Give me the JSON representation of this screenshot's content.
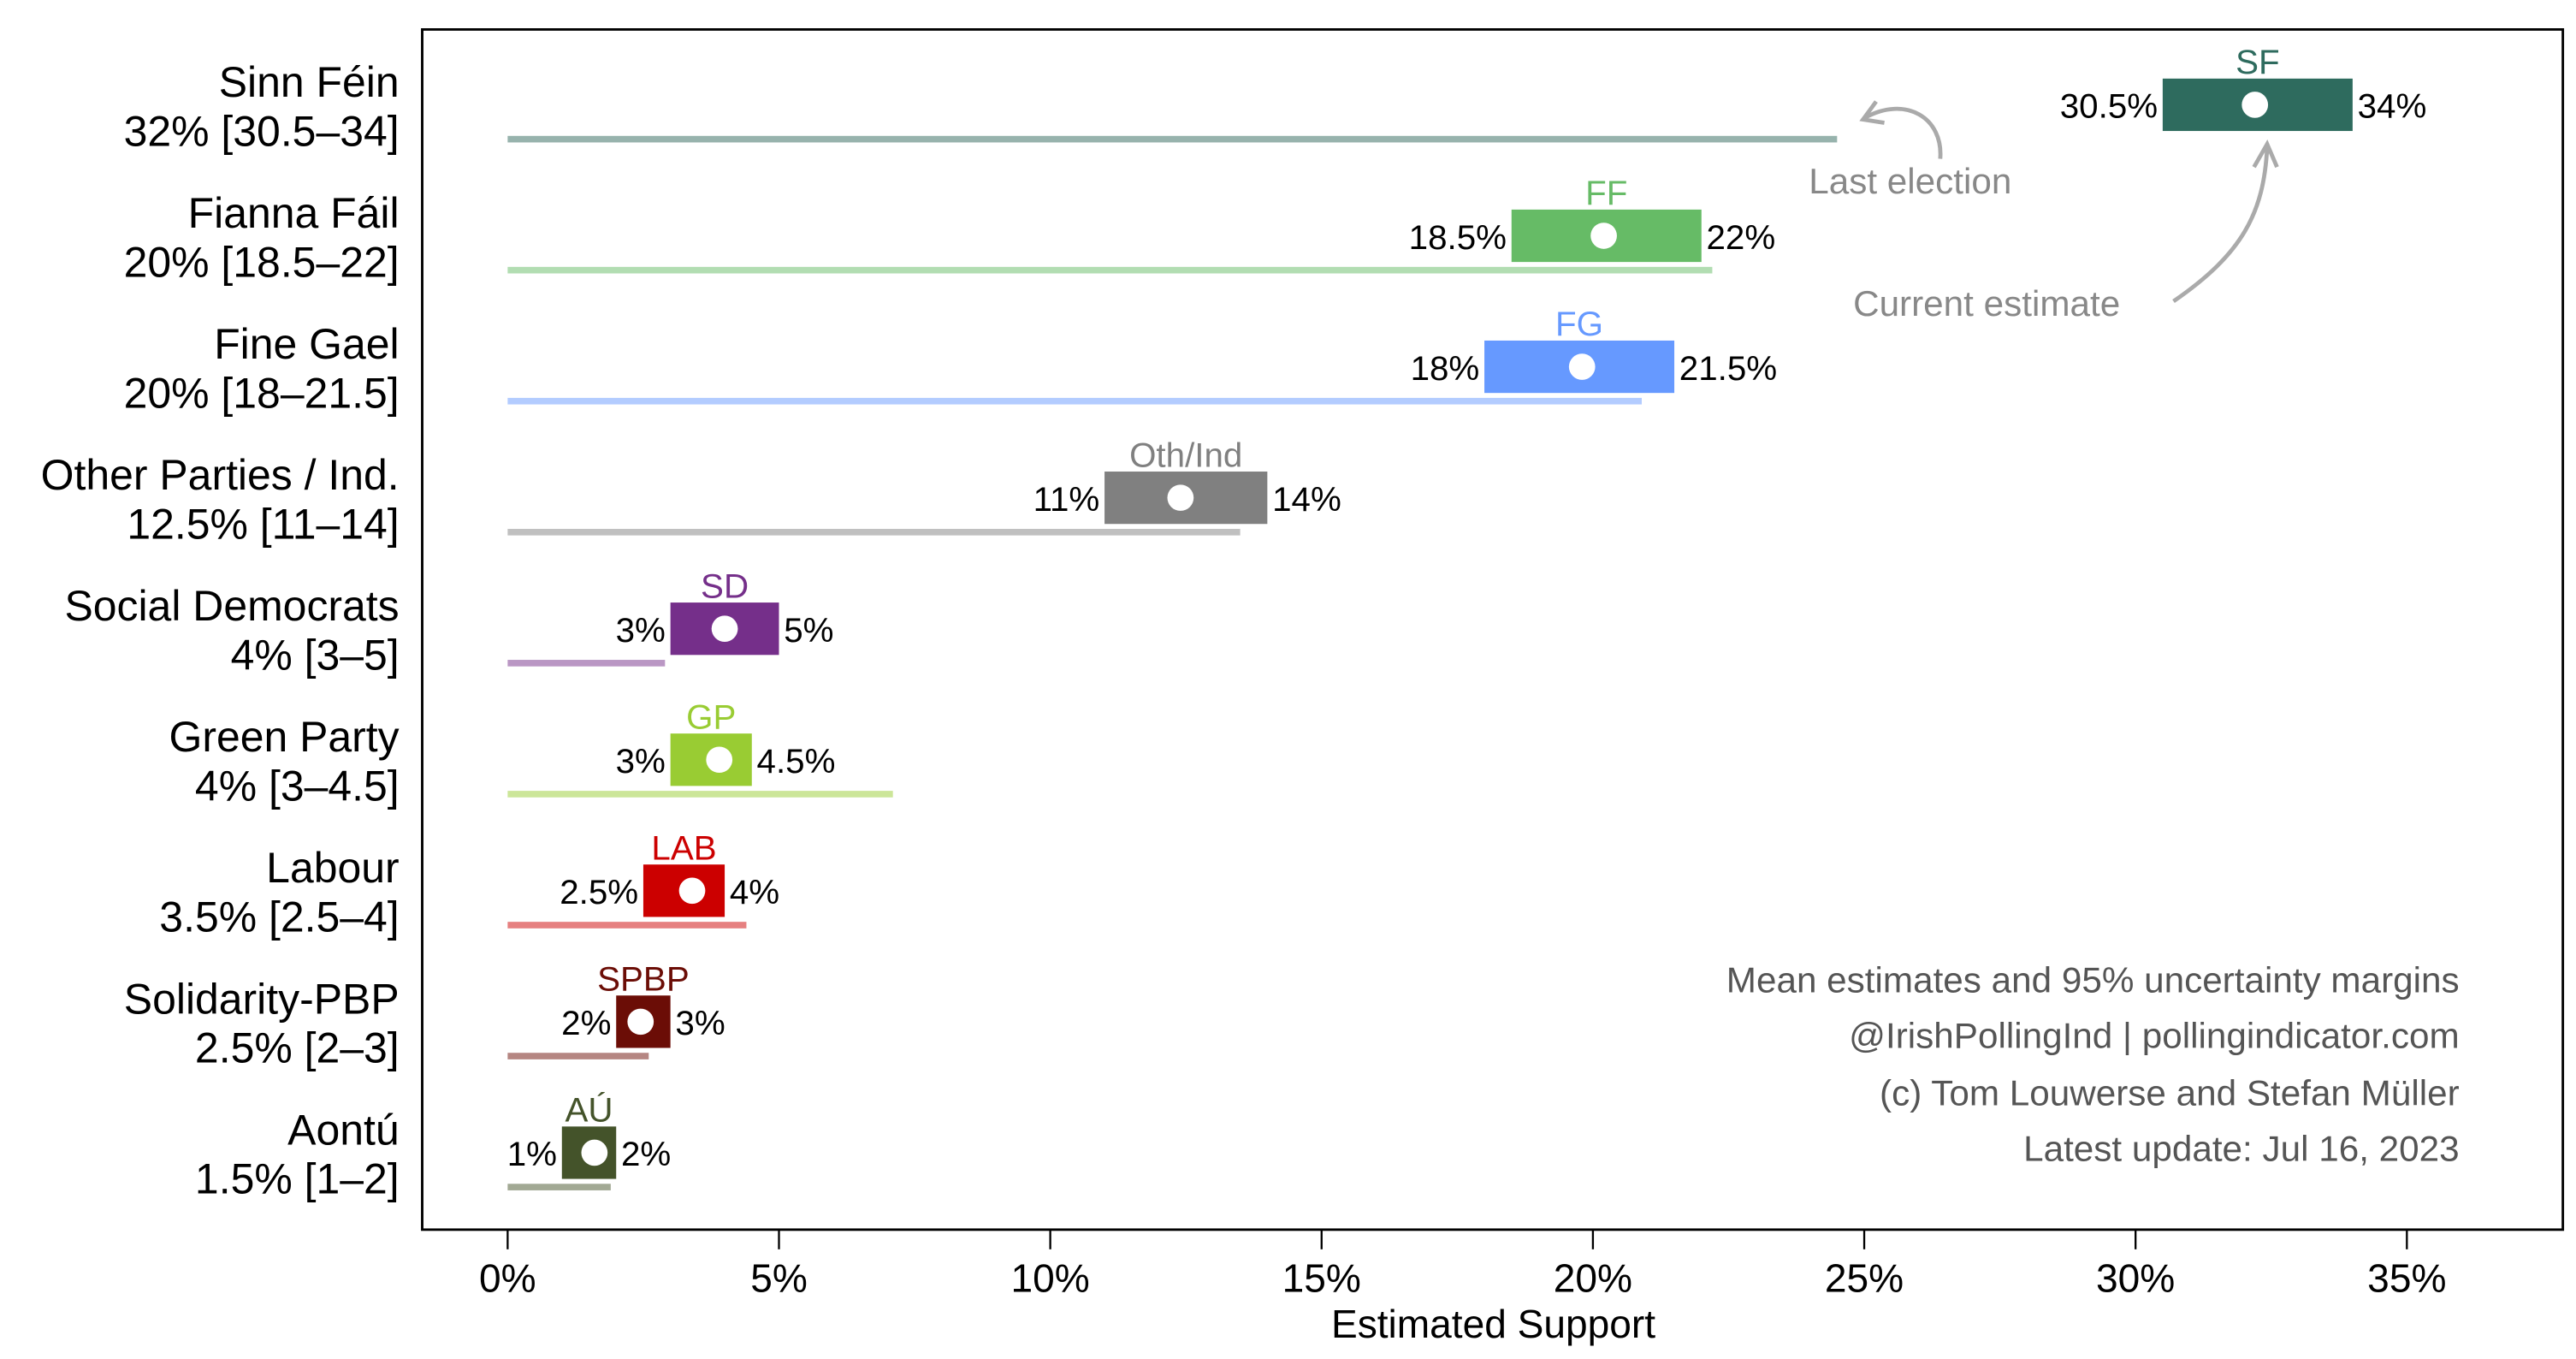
{
  "chart_data": {
    "type": "range-dot",
    "xlabel": "Estimated Support",
    "xlim": [
      0,
      37.5
    ],
    "xticks": [
      0,
      5,
      10,
      15,
      20,
      25,
      30,
      35
    ],
    "xtick_labels": [
      "0%",
      "5%",
      "10%",
      "15%",
      "20%",
      "25%",
      "30%",
      "35%"
    ],
    "parties": [
      {
        "name": "Sinn Féin",
        "summary": "32% [30.5–34]",
        "abbr": "SF",
        "mean": 32.2,
        "lo": 30.5,
        "hi": 34,
        "lo_label": "30.5%",
        "hi_label": "34%",
        "last_election": 24.5,
        "color": "#2e6b5e",
        "last_color": "#97b3ad"
      },
      {
        "name": "Fianna Fáil",
        "summary": "20% [18.5–22]",
        "abbr": "FF",
        "mean": 20.2,
        "lo": 18.5,
        "hi": 22,
        "lo_label": "18.5%",
        "hi_label": "22%",
        "last_election": 22.2,
        "color": "#66bb66",
        "last_color": "#b2ddb2"
      },
      {
        "name": "Fine Gael",
        "summary": "20% [18–21.5]",
        "abbr": "FG",
        "mean": 19.8,
        "lo": 18,
        "hi": 21.5,
        "lo_label": "18%",
        "hi_label": "21.5%",
        "last_election": 20.9,
        "color": "#6699ff",
        "last_color": "#b3ccff"
      },
      {
        "name": "Other Parties / Ind.",
        "summary": "12.5% [11–14]",
        "abbr": "Oth/Ind",
        "mean": 12.4,
        "lo": 11,
        "hi": 14,
        "lo_label": "11%",
        "hi_label": "14%",
        "last_election": 13.5,
        "color": "#808080",
        "last_color": "#c0c0c0"
      },
      {
        "name": "Social Democrats",
        "summary": "4% [3–5]",
        "abbr": "SD",
        "mean": 4.0,
        "lo": 3,
        "hi": 5,
        "lo_label": "3%",
        "hi_label": "5%",
        "last_election": 2.9,
        "color": "#752f8a",
        "last_color": "#ba97c4"
      },
      {
        "name": "Green Party",
        "summary": "4% [3–4.5]",
        "abbr": "GP",
        "mean": 3.9,
        "lo": 3,
        "hi": 4.5,
        "lo_label": "3%",
        "hi_label": "4.5%",
        "last_election": 7.1,
        "color": "#99cc33",
        "last_color": "#cce699"
      },
      {
        "name": "Labour",
        "summary": "3.5% [2.5–4]",
        "abbr": "LAB",
        "mean": 3.4,
        "lo": 2.5,
        "hi": 4,
        "lo_label": "2.5%",
        "hi_label": "4%",
        "last_election": 4.4,
        "color": "#cc0000",
        "last_color": "#e68080"
      },
      {
        "name": "Solidarity-PBP",
        "summary": "2.5% [2–3]",
        "abbr": "SPBP",
        "mean": 2.45,
        "lo": 2,
        "hi": 3,
        "lo_label": "2%",
        "hi_label": "3%",
        "last_election": 2.6,
        "color": "#6b0d06",
        "last_color": "#b58682"
      },
      {
        "name": "Aontú",
        "summary": "1.5% [1–2]",
        "abbr": "AÚ",
        "mean": 1.6,
        "lo": 1,
        "hi": 2,
        "lo_label": "1%",
        "hi_label": "2%",
        "last_election": 1.9,
        "color": "#44532a",
        "last_color": "#a2a994"
      }
    ],
    "annotations": {
      "last_election": "Last election",
      "current_estimate": "Current estimate"
    },
    "notes": [
      "Mean estimates and 95% uncertainty margins",
      "@IrishPollingInd | pollingindicator.com",
      "(c) Tom Louwerse and Stefan Müller",
      "Latest update: Jul 16, 2023"
    ]
  }
}
